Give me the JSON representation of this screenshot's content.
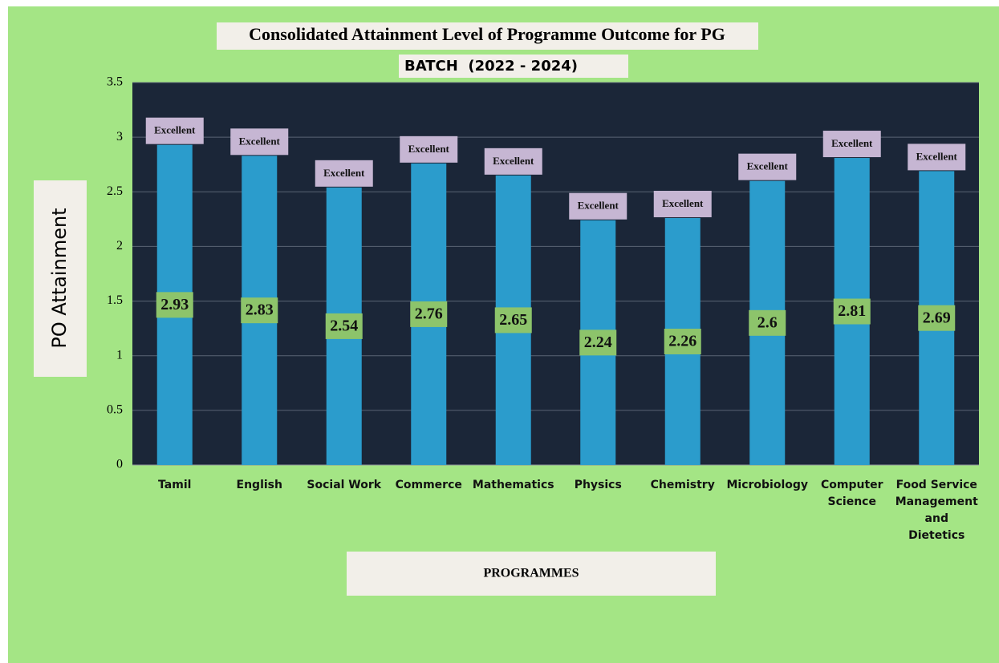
{
  "chart_data": {
    "type": "bar",
    "title": "Consolidated Attainment Level of Programme Outcome for PG",
    "subtitle": "BATCH  (2022 - 2024)",
    "y_label": "PO Attainment",
    "x_label": "PROGRAMMES",
    "categories": [
      "Tamil",
      "English",
      "Social Work",
      "Commerce",
      "Mathematics",
      "Physics",
      "Chemistry",
      "Microbiology",
      "Computer Science",
      "Food Service Management and Dietetics"
    ],
    "values": [
      2.93,
      2.83,
      2.54,
      2.76,
      2.65,
      2.24,
      2.26,
      2.6,
      2.81,
      2.69
    ],
    "annotations": [
      "Excellent",
      "Excellent",
      "Excellent",
      "Excellent",
      "Excellent",
      "Excellent",
      "Excellent",
      "Excellent",
      "Excellent",
      "Excellent"
    ],
    "color": "#2b9ccc",
    "ylim": [
      0,
      3.5
    ],
    "yticks": [
      0,
      0.5,
      1,
      1.5,
      2,
      2.5,
      3,
      3.5
    ],
    "grid": true
  }
}
